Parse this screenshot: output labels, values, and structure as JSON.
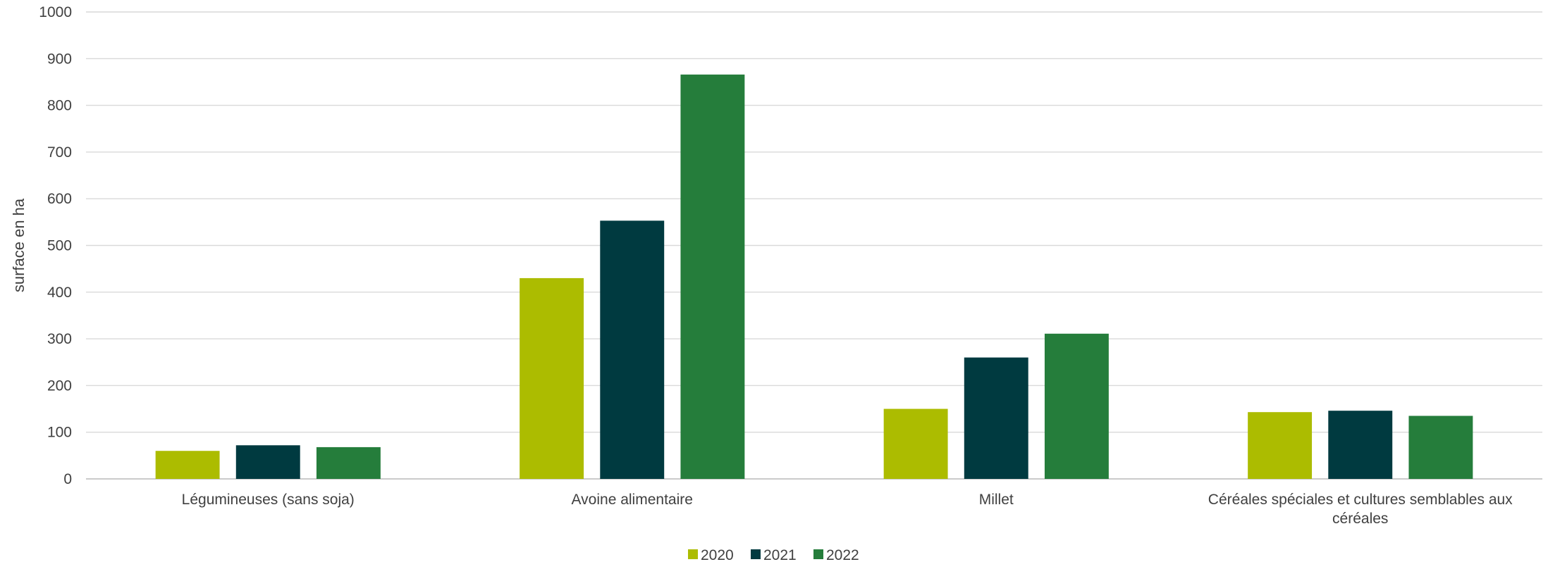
{
  "chart_data": {
    "type": "bar",
    "title": "",
    "xlabel": "",
    "ylabel": "surface en ha",
    "ylim": [
      0,
      1000
    ],
    "yticks": [
      0,
      100,
      200,
      300,
      400,
      500,
      600,
      700,
      800,
      900,
      1000
    ],
    "grid": true,
    "legend_position": "bottom-center",
    "categories": [
      [
        "Légumineuses (sans soja)"
      ],
      [
        "Avoine alimentaire"
      ],
      [
        "Millet"
      ],
      [
        "Céréales spéciales et cultures semblables aux",
        "céréales"
      ]
    ],
    "series": [
      {
        "name": "2020",
        "color": "#acbc00",
        "values": [
          60,
          430,
          150,
          143
        ]
      },
      {
        "name": "2021",
        "color": "#003a40",
        "values": [
          72,
          553,
          260,
          146
        ]
      },
      {
        "name": "2022",
        "color": "#257d3b",
        "values": [
          68,
          866,
          311,
          135
        ]
      }
    ]
  }
}
